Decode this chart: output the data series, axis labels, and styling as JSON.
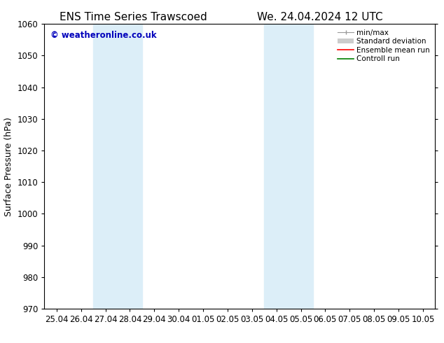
{
  "title_left": "ENS Time Series Trawscoed",
  "title_right": "We. 24.04.2024 12 UTC",
  "ylabel": "Surface Pressure (hPa)",
  "ylim": [
    970,
    1060
  ],
  "yticks": [
    970,
    980,
    990,
    1000,
    1010,
    1020,
    1030,
    1040,
    1050,
    1060
  ],
  "x_tick_labels": [
    "25.04",
    "26.04",
    "27.04",
    "28.04",
    "29.04",
    "30.04",
    "01.05",
    "02.05",
    "03.05",
    "04.05",
    "05.05",
    "06.05",
    "07.05",
    "08.05",
    "09.05",
    "10.05"
  ],
  "x_tick_positions": [
    0,
    1,
    2,
    3,
    4,
    5,
    6,
    7,
    8,
    9,
    10,
    11,
    12,
    13,
    14,
    15
  ],
  "shaded_bands": [
    {
      "xmin": 2,
      "xmax": 4,
      "color": "#dceef8"
    },
    {
      "xmin": 9,
      "xmax": 11,
      "color": "#dceef8"
    }
  ],
  "watermark_text": "© weatheronline.co.uk",
  "watermark_color": "#0000bb",
  "background_color": "#ffffff",
  "plot_bg_color": "#ffffff",
  "legend_entries": [
    {
      "label": "min/max"
    },
    {
      "label": "Standard deviation"
    },
    {
      "label": "Ensemble mean run"
    },
    {
      "label": "Controll run"
    }
  ],
  "legend_colors": [
    "#999999",
    "#cccccc",
    "#ff0000",
    "#008000"
  ],
  "spine_color": "#000000",
  "tick_label_fontsize": 8.5,
  "axis_label_fontsize": 9,
  "title_fontsize": 11
}
